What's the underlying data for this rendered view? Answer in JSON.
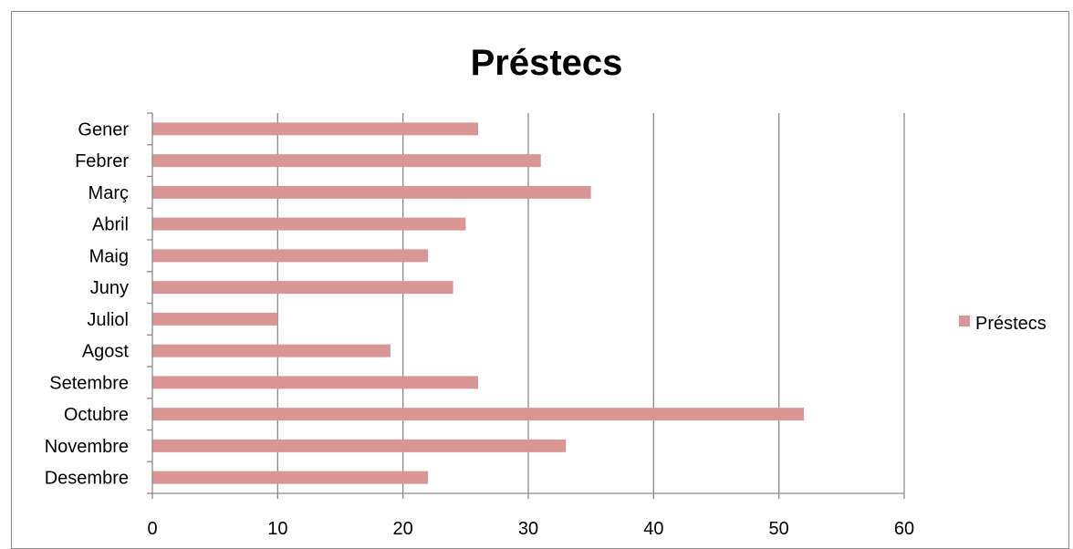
{
  "chart_data": {
    "type": "bar",
    "orientation": "horizontal",
    "title": "Préstecs",
    "xlabel": "",
    "ylabel": "",
    "categories": [
      "Gener",
      "Febrer",
      "Març",
      "Abril",
      "Maig",
      "Juny",
      "Juliol",
      "Agost",
      "Setembre",
      "Octubre",
      "Novembre",
      "Desembre"
    ],
    "series": [
      {
        "name": "Préstecs",
        "values": [
          26,
          31,
          35,
          25,
          22,
          24,
          10,
          19,
          26,
          52,
          33,
          22
        ],
        "color": "#d99694"
      }
    ],
    "xlim": [
      0,
      60
    ],
    "ticks": [
      0,
      10,
      20,
      30,
      40,
      50,
      60
    ],
    "grid": "vertical",
    "legend": "right"
  }
}
